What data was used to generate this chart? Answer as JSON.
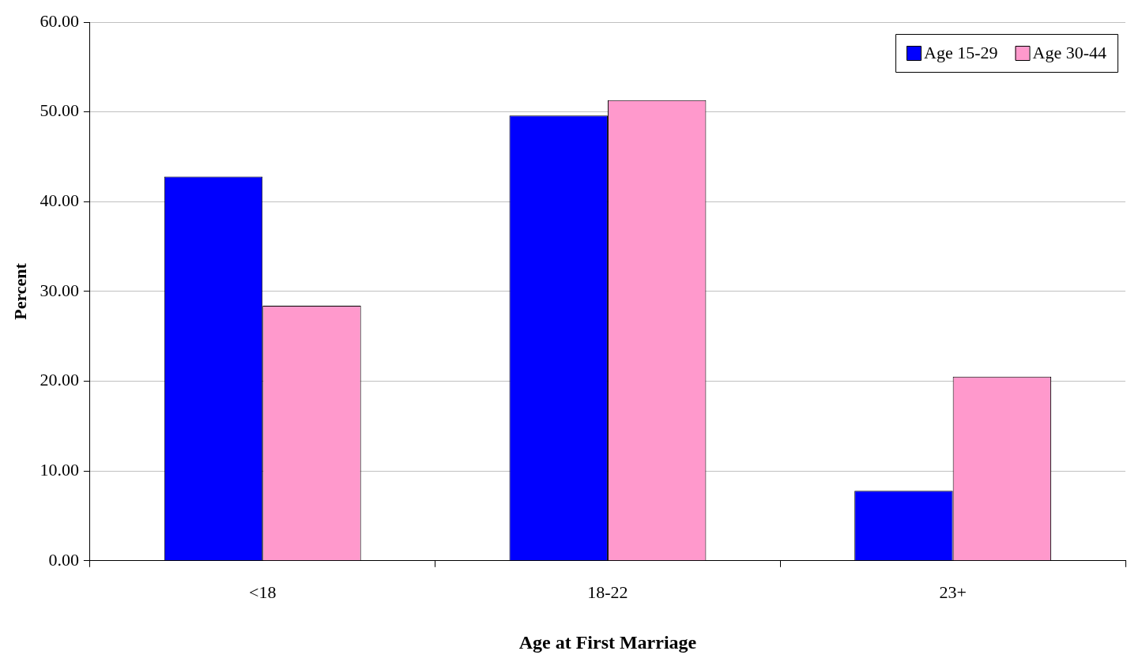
{
  "chart_data": {
    "type": "bar",
    "xlabel": "Age at First Marriage",
    "ylabel": "Percent",
    "categories": [
      "<18",
      "18-22",
      "23+"
    ],
    "series": [
      {
        "name": "Age 15-29",
        "color": "#0000ff",
        "values": [
          42.8,
          49.6,
          7.8
        ]
      },
      {
        "name": "Age 30-44",
        "color": "#ff99cc",
        "values": [
          28.4,
          51.3,
          20.5
        ]
      }
    ],
    "ylim": [
      0,
      60
    ],
    "yticks": [
      {
        "value": 0,
        "label": "0.00"
      },
      {
        "value": 10,
        "label": "10.00"
      },
      {
        "value": 20,
        "label": "20.00"
      },
      {
        "value": 30,
        "label": "30.00"
      },
      {
        "value": 40,
        "label": "40.00"
      },
      {
        "value": 50,
        "label": "50.00"
      },
      {
        "value": 60,
        "label": "60.00"
      }
    ],
    "grid": "y",
    "legend": "top right"
  }
}
